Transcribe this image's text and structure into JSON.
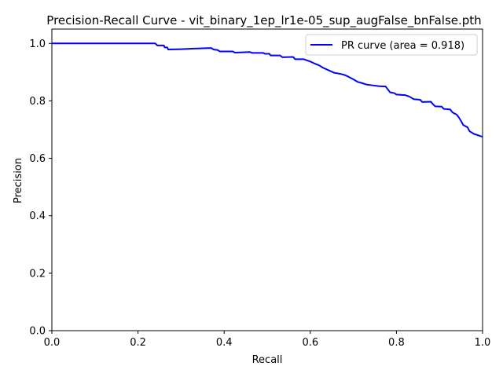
{
  "chart_data": {
    "type": "line",
    "title": "Precision-Recall Curve - vit_binary_1ep_lr1e-05_sup_augFalse_bnFalse.pth",
    "xlabel": "Recall",
    "ylabel": "Precision",
    "xlim": [
      0.0,
      1.0
    ],
    "ylim": [
      0.0,
      1.05
    ],
    "xticks": [
      "0.0",
      "0.2",
      "0.4",
      "0.6",
      "0.8",
      "1.0"
    ],
    "yticks": [
      "0.0",
      "0.2",
      "0.4",
      "0.6",
      "0.8",
      "1.0"
    ],
    "grid": false,
    "legend_position": "upper right",
    "series": [
      {
        "name": "PR curve (area = 0.918)",
        "color": "#0000ff",
        "points": [
          [
            0.0,
            1.0
          ],
          [
            0.24,
            1.0
          ],
          [
            0.245,
            0.993
          ],
          [
            0.26,
            0.993
          ],
          [
            0.262,
            0.986
          ],
          [
            0.268,
            0.986
          ],
          [
            0.27,
            0.979
          ],
          [
            0.3,
            0.98
          ],
          [
            0.33,
            0.982
          ],
          [
            0.37,
            0.984
          ],
          [
            0.375,
            0.979
          ],
          [
            0.385,
            0.977
          ],
          [
            0.39,
            0.972
          ],
          [
            0.42,
            0.972
          ],
          [
            0.425,
            0.968
          ],
          [
            0.46,
            0.97
          ],
          [
            0.465,
            0.967
          ],
          [
            0.49,
            0.967
          ],
          [
            0.495,
            0.964
          ],
          [
            0.505,
            0.964
          ],
          [
            0.508,
            0.958
          ],
          [
            0.53,
            0.958
          ],
          [
            0.535,
            0.952
          ],
          [
            0.56,
            0.953
          ],
          [
            0.565,
            0.945
          ],
          [
            0.585,
            0.945
          ],
          [
            0.6,
            0.937
          ],
          [
            0.61,
            0.93
          ],
          [
            0.62,
            0.924
          ],
          [
            0.63,
            0.915
          ],
          [
            0.645,
            0.905
          ],
          [
            0.655,
            0.898
          ],
          [
            0.67,
            0.894
          ],
          [
            0.68,
            0.89
          ],
          [
            0.69,
            0.883
          ],
          [
            0.7,
            0.875
          ],
          [
            0.71,
            0.866
          ],
          [
            0.72,
            0.862
          ],
          [
            0.73,
            0.857
          ],
          [
            0.745,
            0.854
          ],
          [
            0.76,
            0.851
          ],
          [
            0.775,
            0.85
          ],
          [
            0.78,
            0.84
          ],
          [
            0.785,
            0.83
          ],
          [
            0.795,
            0.827
          ],
          [
            0.8,
            0.822
          ],
          [
            0.82,
            0.82
          ],
          [
            0.83,
            0.815
          ],
          [
            0.84,
            0.806
          ],
          [
            0.855,
            0.804
          ],
          [
            0.86,
            0.796
          ],
          [
            0.88,
            0.797
          ],
          [
            0.885,
            0.788
          ],
          [
            0.89,
            0.781
          ],
          [
            0.905,
            0.78
          ],
          [
            0.91,
            0.772
          ],
          [
            0.925,
            0.77
          ],
          [
            0.93,
            0.76
          ],
          [
            0.94,
            0.752
          ],
          [
            0.945,
            0.742
          ],
          [
            0.95,
            0.73
          ],
          [
            0.955,
            0.716
          ],
          [
            0.965,
            0.708
          ],
          [
            0.97,
            0.694
          ],
          [
            0.98,
            0.685
          ],
          [
            0.99,
            0.68
          ],
          [
            1.0,
            0.675
          ]
        ]
      }
    ]
  }
}
